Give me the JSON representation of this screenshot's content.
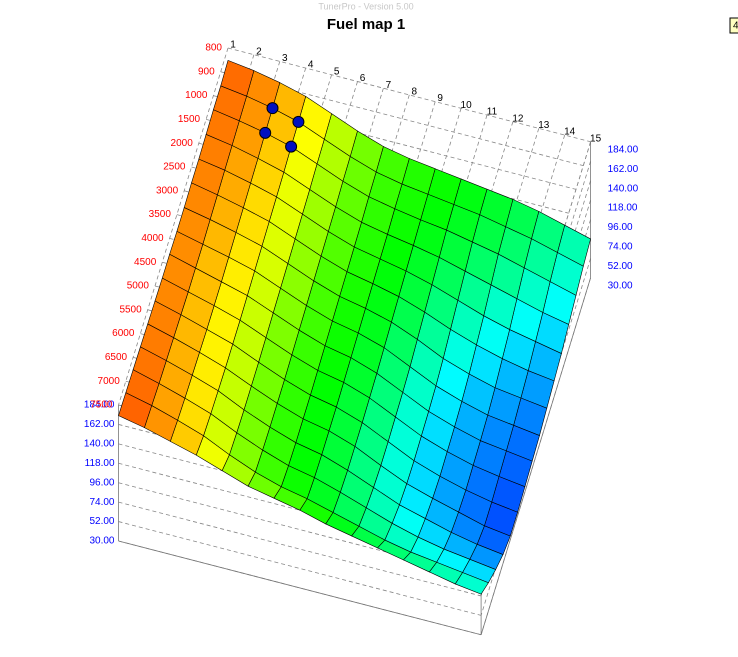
{
  "app_title": "TunerPro - Version 5.00",
  "corner_badge": "4",
  "chart_data": {
    "type": "surface",
    "title": "Fuel map 1",
    "x_categories": [
      "1",
      "2",
      "3",
      "4",
      "5",
      "6",
      "7",
      "8",
      "9",
      "10",
      "11",
      "12",
      "13",
      "14",
      "15"
    ],
    "y_categories": [
      "800",
      "900",
      "1000",
      "1500",
      "2000",
      "2500",
      "3000",
      "3500",
      "4000",
      "4500",
      "5000",
      "5500",
      "6000",
      "6500",
      "7000",
      "7500"
    ],
    "zlim": [
      30,
      184
    ],
    "zticks": [
      {
        "value": 30,
        "label": "30.00"
      },
      {
        "value": 52,
        "label": "52.00"
      },
      {
        "value": 74,
        "label": "74.00"
      },
      {
        "value": 96,
        "label": "96.00"
      },
      {
        "value": 118,
        "label": "118.00"
      },
      {
        "value": 140,
        "label": "140.00"
      },
      {
        "value": 162,
        "label": "162.00"
      },
      {
        "value": 184,
        "label": "184.00"
      }
    ],
    "values": [
      [
        170,
        166,
        160,
        152,
        140,
        128,
        118,
        112,
        108,
        104,
        100,
        96,
        90,
        82,
        74
      ],
      [
        168,
        164,
        158,
        150,
        138,
        126,
        116,
        110,
        106,
        102,
        98,
        92,
        86,
        78,
        70
      ],
      [
        168,
        163,
        157,
        149,
        137,
        125,
        115,
        109,
        104,
        100,
        94,
        88,
        80,
        72,
        64
      ],
      [
        167,
        162,
        155,
        147,
        135,
        123,
        113,
        107,
        102,
        96,
        88,
        80,
        72,
        64,
        58
      ],
      [
        166,
        161,
        154,
        146,
        134,
        122,
        112,
        106,
        100,
        92,
        82,
        72,
        64,
        58,
        52
      ],
      [
        166,
        160,
        153,
        145,
        133,
        121,
        111,
        105,
        98,
        88,
        76,
        66,
        58,
        52,
        48
      ],
      [
        165,
        159,
        152,
        144,
        132,
        120,
        110,
        104,
        96,
        84,
        70,
        60,
        52,
        48,
        44
      ],
      [
        165,
        158,
        151,
        143,
        131,
        119,
        109,
        103,
        94,
        80,
        66,
        56,
        48,
        44,
        40
      ],
      [
        166,
        158,
        150,
        142,
        130,
        118,
        108,
        102,
        92,
        78,
        64,
        54,
        46,
        42,
        38
      ],
      [
        166,
        158,
        150,
        141,
        129,
        117,
        107,
        101,
        91,
        77,
        63,
        53,
        45,
        40,
        36
      ],
      [
        167,
        159,
        150,
        141,
        128,
        116,
        106,
        100,
        90,
        76,
        62,
        52,
        44,
        38,
        34
      ],
      [
        168,
        160,
        151,
        141,
        128,
        116,
        106,
        100,
        90,
        76,
        63,
        54,
        46,
        38,
        34
      ],
      [
        169,
        161,
        152,
        142,
        128,
        116,
        106,
        100,
        90,
        78,
        66,
        58,
        50,
        44,
        40
      ],
      [
        170,
        162,
        153,
        143,
        129,
        117,
        107,
        101,
        92,
        82,
        72,
        64,
        58,
        54,
        50
      ],
      [
        171,
        164,
        155,
        145,
        131,
        119,
        110,
        104,
        96,
        88,
        80,
        74,
        70,
        66,
        62
      ],
      [
        172,
        166,
        158,
        150,
        140,
        130,
        124,
        118,
        110,
        104,
        98,
        92,
        86,
        80,
        76
      ]
    ],
    "row_label_color": "#ff0000",
    "z_label_color": "#0000ff"
  }
}
